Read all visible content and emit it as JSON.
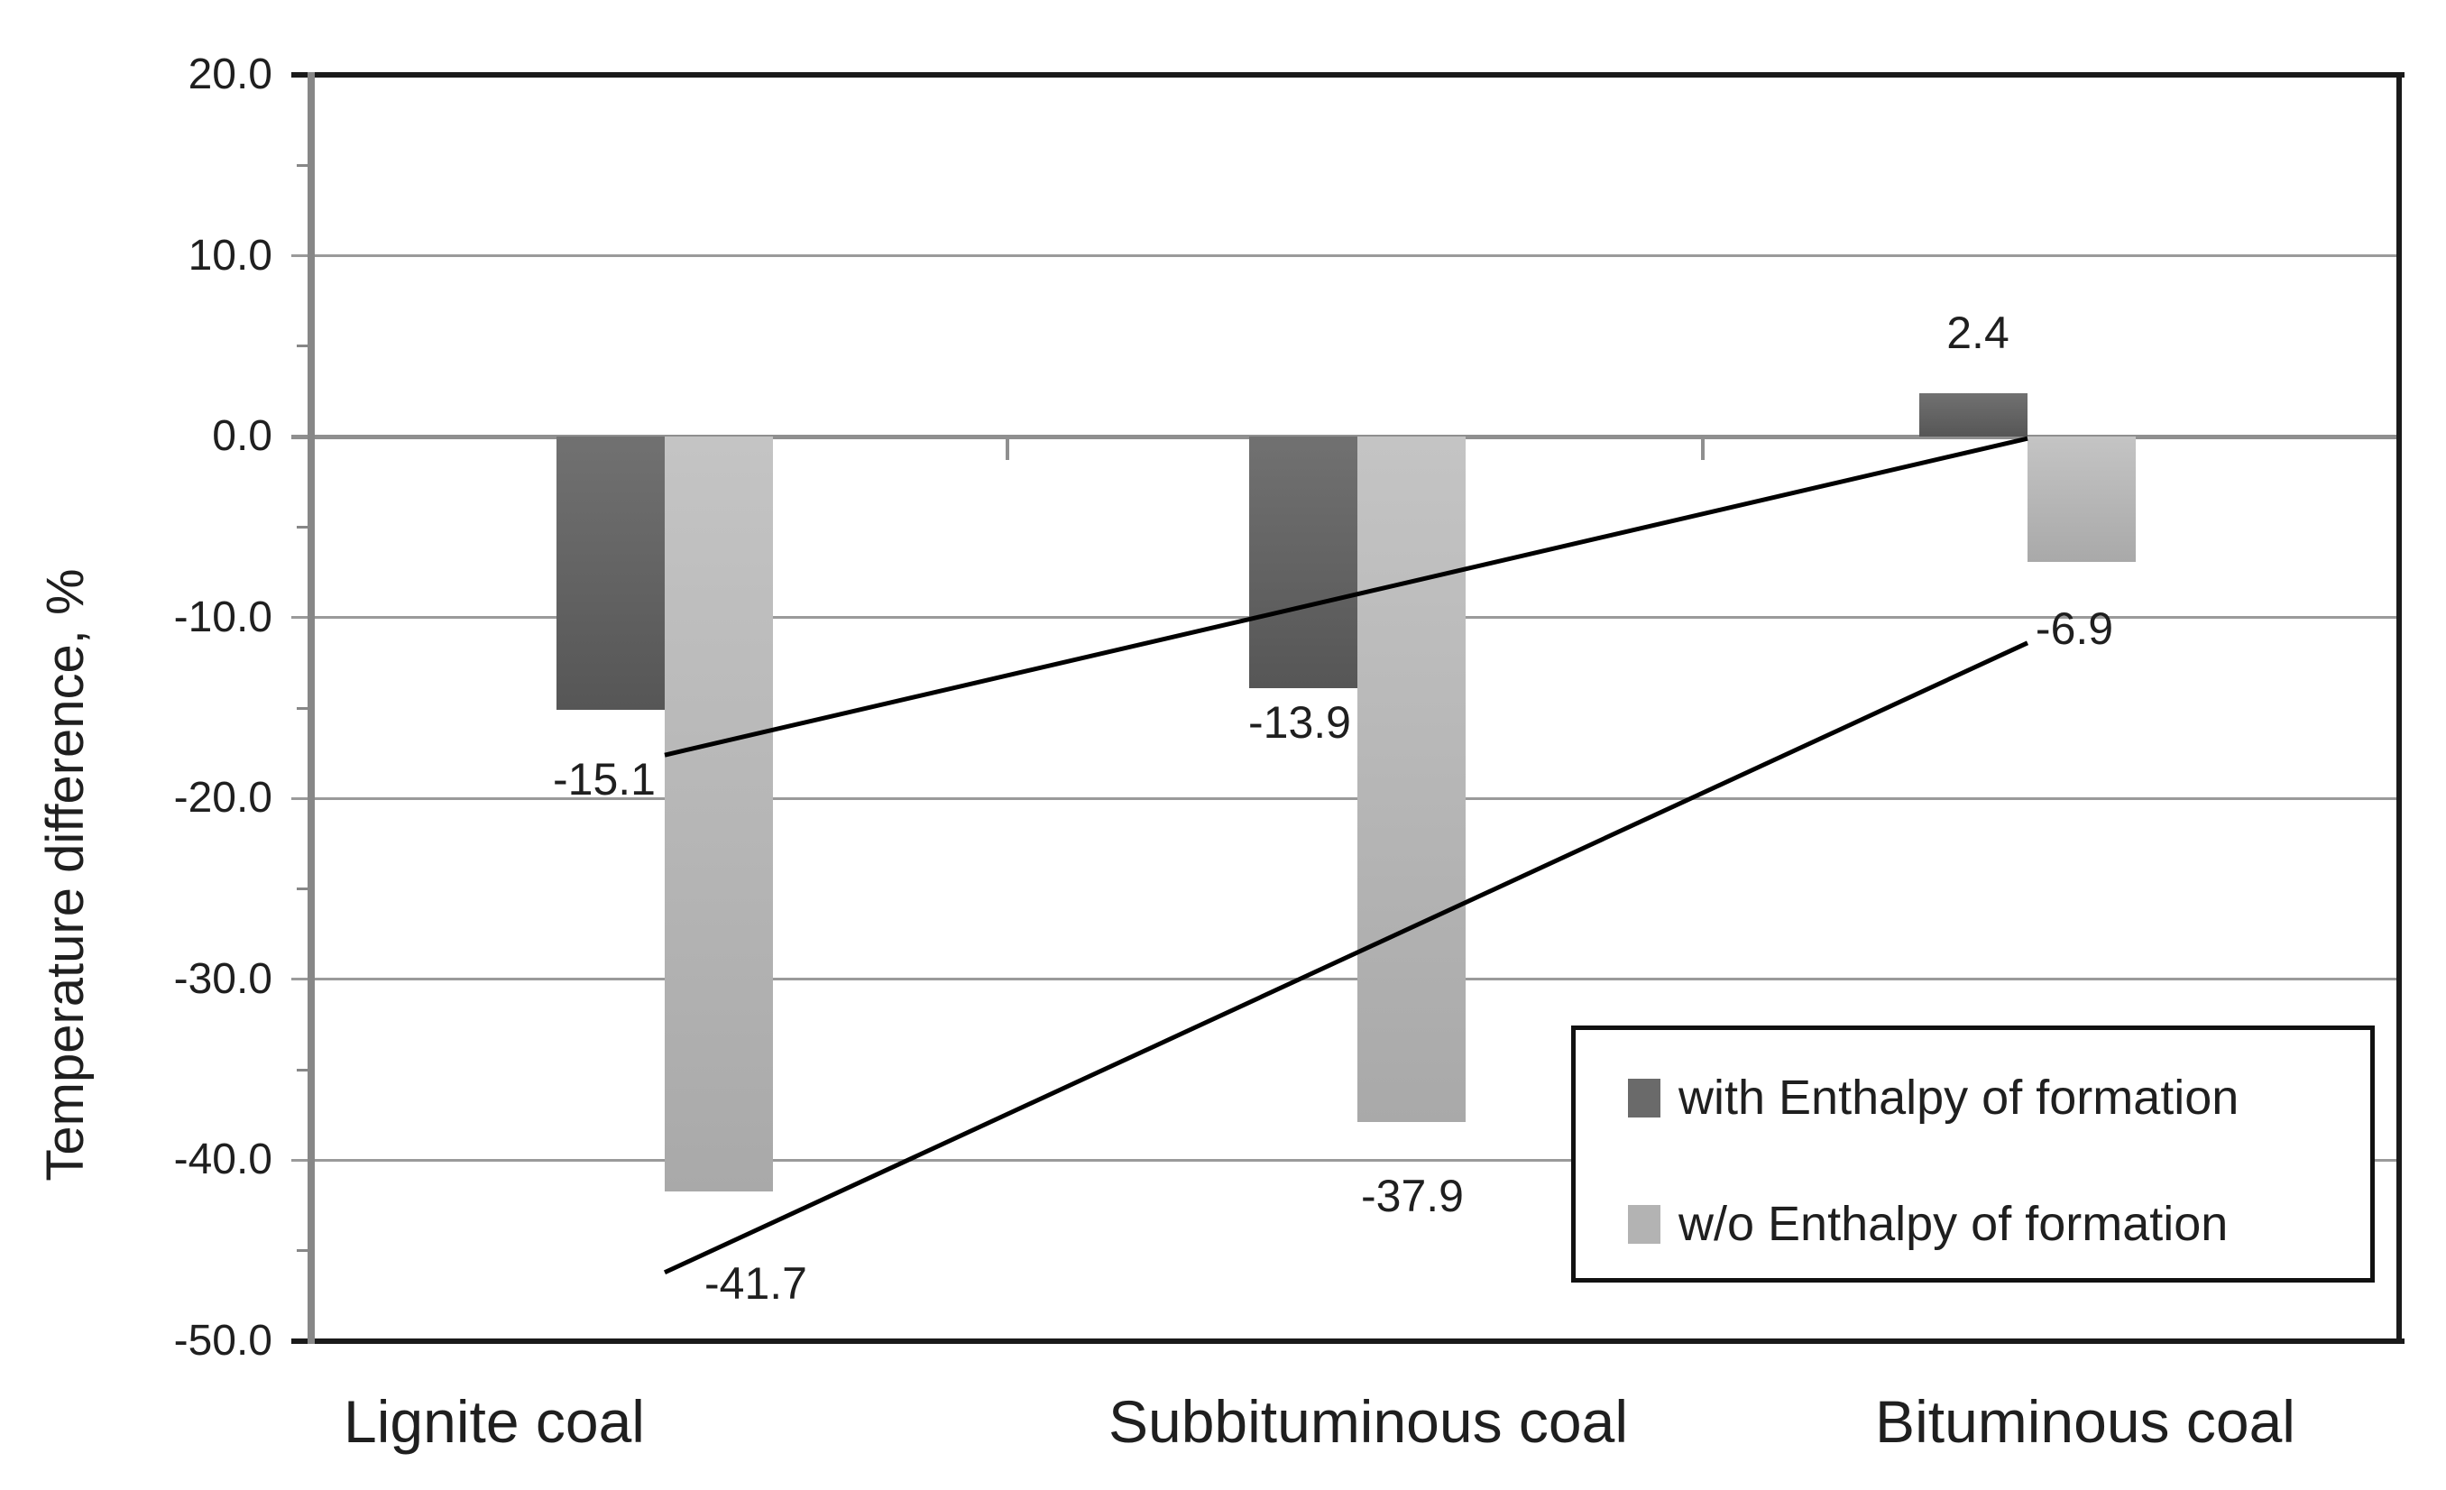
{
  "chart_data": {
    "type": "bar",
    "title": "",
    "categories": [
      "Lignite coal",
      "Subbituminous coal",
      "Bituminous coal"
    ],
    "series": [
      {
        "name": "with Enthalpy of formation",
        "values": [
          -15.1,
          -13.9,
          2.4
        ],
        "color_top": "#717171",
        "color_bottom": "#565656"
      },
      {
        "name": "w/o Enthalpy of formation",
        "values": [
          -41.7,
          -37.9,
          -6.9
        ],
        "color_top": "#c4c4c4",
        "color_bottom": "#a9a9a9"
      }
    ],
    "data_labels": [
      [
        "-15.1",
        "-13.9",
        "2.4"
      ],
      [
        "-41.7",
        "-37.9",
        "-6.9"
      ]
    ],
    "xlabel": "",
    "ylabel": "Temperature difference, %",
    "ylim": [
      -50,
      20
    ],
    "ytick_step": 10,
    "ytick_minor_step": 5,
    "ytick_values": [
      20,
      10,
      0,
      -10,
      -20,
      -30,
      -40,
      -50
    ],
    "ytick_labels": [
      "20.0",
      "10.0",
      "0.0",
      "-10.0",
      "-20.0",
      "-30.0",
      "-40.0",
      "-50.0"
    ],
    "grid": true,
    "legend_position": "inside-bottom-right",
    "trendlines": [
      {
        "series": "with Enthalpy of formation",
        "from_category_index": 0,
        "to_category_index": 2,
        "from_value": -17.6,
        "to_value": -0.1,
        "color": "#000000"
      },
      {
        "series": "w/o Enthalpy of formation",
        "from_category_index": 0,
        "to_category_index": 2,
        "from_value": -46.2,
        "to_value": -11.4,
        "color": "#000000"
      }
    ],
    "colors": {
      "gridline": "#9a9a9a",
      "axis_line": "#878787",
      "plot_border": "#1a1a1a",
      "text": "#1f1f1f",
      "background": "#ffffff"
    }
  }
}
